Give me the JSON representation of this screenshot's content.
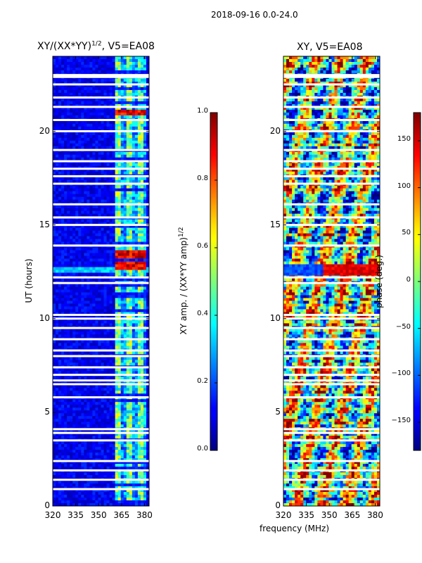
{
  "suptitle": "2018-09-16 0.0-24.0",
  "x_label": "frequency (MHz)",
  "chart_data": [
    {
      "type": "heatmap",
      "title_main": "XY/(XX*YY)",
      "title_sup": "1/2",
      "title_tail": ", V5=EA08",
      "xlabel": "frequency (MHz)",
      "ylabel": "UT (hours)",
      "xlim": [
        320,
        383
      ],
      "ylim": [
        0,
        24
      ],
      "x_ticks": [
        "320",
        "335",
        "350",
        "365",
        "380"
      ],
      "x_tick_values": [
        320,
        335,
        350,
        365,
        380
      ],
      "y_ticks": [
        "0",
        "5",
        "10",
        "15",
        "20"
      ],
      "y_tick_values": [
        0,
        5,
        10,
        15,
        20
      ],
      "colorbar": {
        "label_main": "XY amp. / (XX*YY amp)",
        "label_sup": "1/2",
        "range": [
          0.0,
          1.0
        ],
        "ticks": [
          "0.0",
          "0.2",
          "0.4",
          "0.6",
          "0.8",
          "1.0"
        ],
        "tick_values": [
          0.0,
          0.2,
          0.4,
          0.6,
          0.8,
          1.0
        ]
      },
      "bright_band_mhz": [
        361,
        382
      ],
      "strong_rows_hours": [
        12.8,
        13.4,
        21.0
      ],
      "flag_rows_hours": [
        0.9,
        1.4,
        1.9,
        2.4,
        3.5,
        3.9,
        4.1,
        5.8,
        6.5,
        6.7,
        7.0,
        7.4,
        8.0,
        8.3,
        8.9,
        9.5,
        10.0,
        10.2,
        11.9,
        12.2,
        13.9,
        15.0,
        15.4,
        16.1,
        17.2,
        17.6,
        18.0,
        18.4,
        19.0,
        20.0,
        20.6,
        21.3,
        21.8,
        22.5,
        22.9,
        23.0
      ]
    },
    {
      "type": "heatmap",
      "title": "XY, V5=EA08",
      "xlabel": "frequency (MHz)",
      "ylabel": "",
      "xlim": [
        320,
        383
      ],
      "ylim": [
        0,
        24
      ],
      "x_ticks": [
        "320",
        "335",
        "350",
        "365",
        "380"
      ],
      "x_tick_values": [
        320,
        335,
        350,
        365,
        380
      ],
      "y_ticks": [
        "0",
        "5",
        "10",
        "15",
        "20"
      ],
      "y_tick_values": [
        0,
        5,
        10,
        15,
        20
      ],
      "colorbar": {
        "label": "phase (deg.)",
        "range": [
          -180,
          180
        ],
        "ticks": [
          "−150",
          "−100",
          "−50",
          "0",
          "50",
          "100",
          "150"
        ],
        "tick_values": [
          -150,
          -100,
          -50,
          0,
          50,
          100,
          150
        ]
      },
      "flag_rows_hours": [
        0.9,
        1.4,
        1.9,
        2.4,
        3.5,
        3.9,
        4.1,
        5.8,
        6.5,
        6.7,
        7.0,
        7.4,
        8.0,
        8.3,
        8.9,
        9.5,
        10.0,
        10.2,
        11.9,
        12.2,
        13.9,
        15.0,
        15.4,
        16.1,
        17.2,
        17.6,
        18.0,
        18.4,
        19.0,
        20.0,
        20.6,
        21.3,
        21.8,
        22.5,
        22.9,
        23.0
      ]
    }
  ]
}
